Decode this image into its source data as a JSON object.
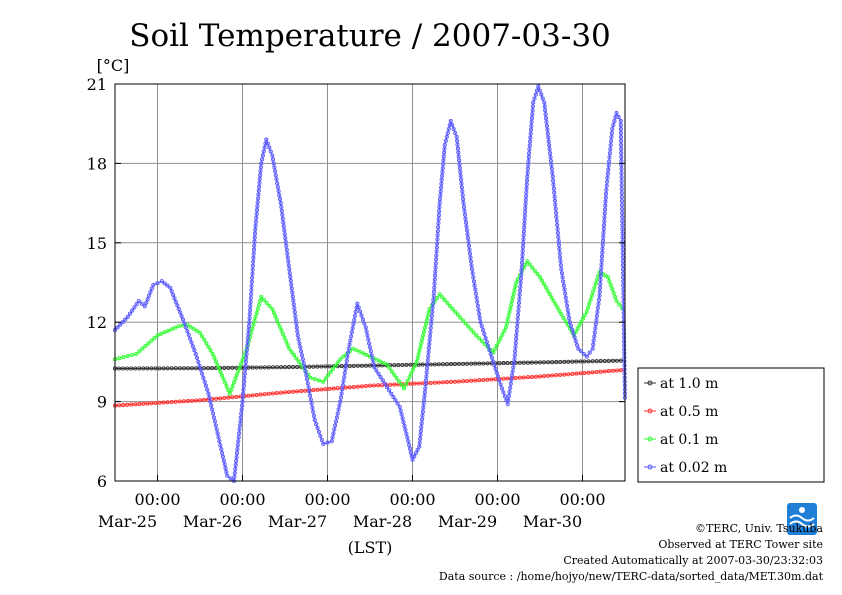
{
  "colors": {
    "at_1_0": "#303030",
    "at_0_5": "#ff3030",
    "at_0_1": "#33ff33",
    "at_0_02": "#5a5aff",
    "grid": "#909090",
    "frame": "#000000",
    "logo": "#1f7fd6"
  },
  "credits": {
    "copyright": "©TERC, Univ. Tsukuba",
    "site": "Observed at TERC Tower site",
    "created": "Created Automatically at 2007-03-30/23:32:03",
    "source": "Data source : /home/hojyo/new/TERC-data/sorted_data/MET.30m.dat",
    "logo_text": "TERC"
  },
  "chart_data": {
    "type": "line",
    "title": "Soil Temperature / 2007-03-30",
    "ylabel": "[°C]",
    "xlabel": "(LST)",
    "ylim": [
      6,
      21
    ],
    "yticks": [
      6,
      9,
      12,
      15,
      18,
      21
    ],
    "xlim": [
      0,
      6
    ],
    "x_unit": "days from 2007-03-24 12:00 LST",
    "x_ticks": [
      {
        "x": 0.5,
        "time": "00:00",
        "date": "Mar-25"
      },
      {
        "x": 1.5,
        "time": "00:00",
        "date": "Mar-26"
      },
      {
        "x": 2.5,
        "time": "00:00",
        "date": "Mar-27"
      },
      {
        "x": 3.5,
        "time": "00:00",
        "date": "Mar-28"
      },
      {
        "x": 4.5,
        "time": "00:00",
        "date": "Mar-29"
      },
      {
        "x": 5.5,
        "time": "00:00",
        "date": "Mar-30"
      }
    ],
    "grid": true,
    "legend_position": "right",
    "series": [
      {
        "name": "at 1.0 m",
        "color_key": "at_1_0",
        "points": [
          [
            0,
            10.25
          ],
          [
            1,
            10.26
          ],
          [
            2,
            10.3
          ],
          [
            3,
            10.36
          ],
          [
            4,
            10.42
          ],
          [
            5,
            10.48
          ],
          [
            6,
            10.55
          ]
        ]
      },
      {
        "name": "at 0.5 m",
        "color_key": "at_0_5",
        "points": [
          [
            0,
            8.85
          ],
          [
            1,
            9.05
          ],
          [
            2,
            9.35
          ],
          [
            3,
            9.6
          ],
          [
            4,
            9.75
          ],
          [
            5,
            9.95
          ],
          [
            6,
            10.2
          ]
        ]
      },
      {
        "name": "at 0.1 m",
        "color_key": "at_0_1",
        "points": [
          [
            0,
            10.6
          ],
          [
            0.25,
            10.8
          ],
          [
            0.5,
            11.5
          ],
          [
            0.75,
            11.85
          ],
          [
            0.85,
            11.9
          ],
          [
            1.0,
            11.6
          ],
          [
            1.15,
            10.8
          ],
          [
            1.35,
            9.3
          ],
          [
            1.55,
            11.0
          ],
          [
            1.72,
            12.95
          ],
          [
            1.85,
            12.5
          ],
          [
            2.05,
            11.0
          ],
          [
            2.3,
            9.9
          ],
          [
            2.45,
            9.75
          ],
          [
            2.65,
            10.6
          ],
          [
            2.8,
            11.0
          ],
          [
            3.0,
            10.7
          ],
          [
            3.2,
            10.4
          ],
          [
            3.4,
            9.5
          ],
          [
            3.55,
            10.5
          ],
          [
            3.7,
            12.5
          ],
          [
            3.82,
            13.05
          ],
          [
            4.0,
            12.4
          ],
          [
            4.25,
            11.5
          ],
          [
            4.45,
            10.85
          ],
          [
            4.6,
            11.8
          ],
          [
            4.72,
            13.5
          ],
          [
            4.85,
            14.3
          ],
          [
            5.0,
            13.7
          ],
          [
            5.25,
            12.3
          ],
          [
            5.4,
            11.5
          ],
          [
            5.55,
            12.4
          ],
          [
            5.7,
            13.9
          ],
          [
            5.8,
            13.7
          ],
          [
            5.9,
            12.8
          ],
          [
            6.0,
            12.4
          ]
        ]
      },
      {
        "name": "at 0.02 m",
        "color_key": "at_0_02",
        "points": [
          [
            0,
            11.7
          ],
          [
            0.15,
            12.2
          ],
          [
            0.28,
            12.8
          ],
          [
            0.35,
            12.6
          ],
          [
            0.45,
            13.4
          ],
          [
            0.55,
            13.55
          ],
          [
            0.65,
            13.3
          ],
          [
            0.8,
            12.1
          ],
          [
            0.95,
            10.8
          ],
          [
            1.1,
            9.3
          ],
          [
            1.25,
            7.2
          ],
          [
            1.32,
            6.2
          ],
          [
            1.4,
            6.0
          ],
          [
            1.5,
            9.0
          ],
          [
            1.58,
            12.0
          ],
          [
            1.65,
            15.5
          ],
          [
            1.72,
            18.0
          ],
          [
            1.78,
            18.9
          ],
          [
            1.85,
            18.3
          ],
          [
            1.95,
            16.5
          ],
          [
            2.05,
            14.0
          ],
          [
            2.15,
            11.5
          ],
          [
            2.25,
            10.0
          ],
          [
            2.35,
            8.3
          ],
          [
            2.45,
            7.4
          ],
          [
            2.55,
            7.5
          ],
          [
            2.65,
            9.0
          ],
          [
            2.75,
            11.0
          ],
          [
            2.85,
            12.7
          ],
          [
            2.95,
            11.8
          ],
          [
            3.05,
            10.3
          ],
          [
            3.15,
            9.8
          ],
          [
            3.25,
            9.3
          ],
          [
            3.35,
            8.8
          ],
          [
            3.45,
            7.5
          ],
          [
            3.5,
            6.8
          ],
          [
            3.58,
            7.3
          ],
          [
            3.65,
            9.5
          ],
          [
            3.75,
            13.0
          ],
          [
            3.82,
            16.5
          ],
          [
            3.88,
            18.7
          ],
          [
            3.95,
            19.6
          ],
          [
            4.02,
            19.0
          ],
          [
            4.1,
            16.5
          ],
          [
            4.2,
            14.0
          ],
          [
            4.3,
            12.0
          ],
          [
            4.42,
            10.8
          ],
          [
            4.52,
            9.8
          ],
          [
            4.62,
            8.9
          ],
          [
            4.7,
            10.6
          ],
          [
            4.78,
            13.8
          ],
          [
            4.85,
            17.5
          ],
          [
            4.92,
            20.3
          ],
          [
            4.98,
            20.9
          ],
          [
            5.05,
            20.3
          ],
          [
            5.15,
            17.5
          ],
          [
            5.25,
            14.0
          ],
          [
            5.35,
            12.0
          ],
          [
            5.45,
            11.0
          ],
          [
            5.55,
            10.7
          ],
          [
            5.62,
            11.0
          ],
          [
            5.7,
            13.0
          ],
          [
            5.78,
            17.0
          ],
          [
            5.85,
            19.3
          ],
          [
            5.9,
            19.9
          ],
          [
            5.95,
            19.6
          ],
          [
            6.0,
            9.0
          ]
        ]
      }
    ]
  }
}
